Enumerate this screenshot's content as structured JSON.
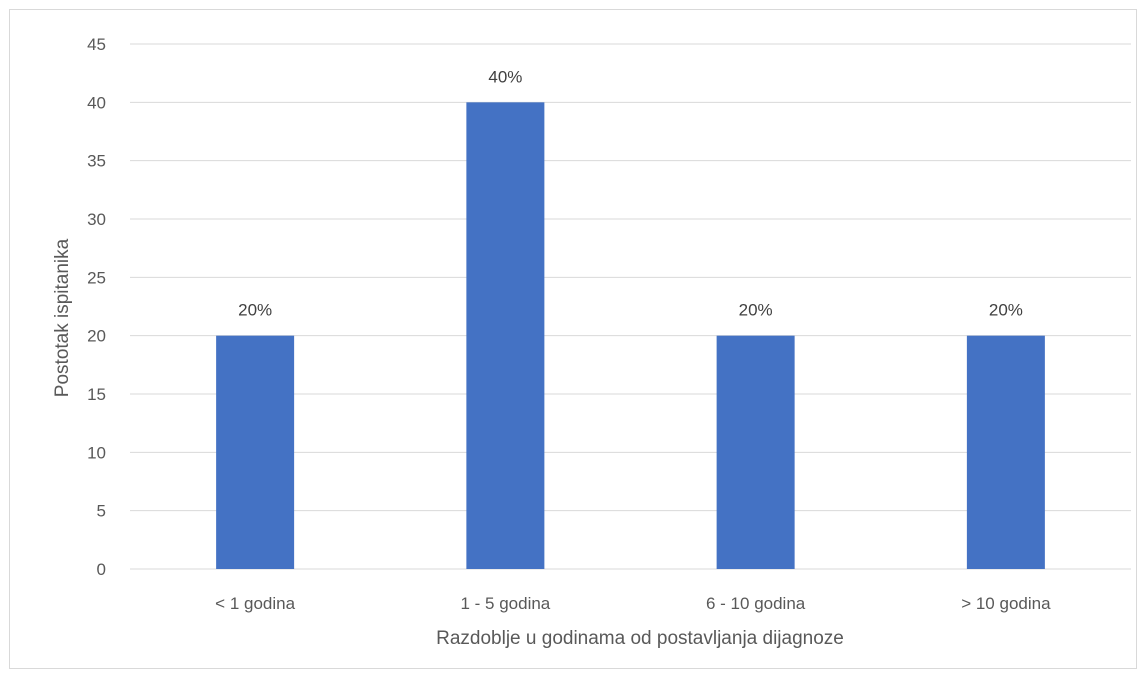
{
  "chart_data": {
    "type": "bar",
    "categories": [
      "< 1 godina",
      "1 - 5 godina",
      "6 - 10 godina",
      "> 10 godina"
    ],
    "values": [
      20,
      40,
      20,
      20
    ],
    "data_labels": [
      "20%",
      "40%",
      "20%",
      "20%"
    ],
    "title": "",
    "xlabel": "Razdoblje u godinama od postavljanja dijagnoze",
    "ylabel": "Postotak ispitanika",
    "ylim": [
      0,
      45
    ],
    "yticks": [
      0,
      5,
      10,
      15,
      20,
      25,
      30,
      35,
      40,
      45
    ],
    "grid": true,
    "legend": "none",
    "bar_color": "#4472c4"
  }
}
